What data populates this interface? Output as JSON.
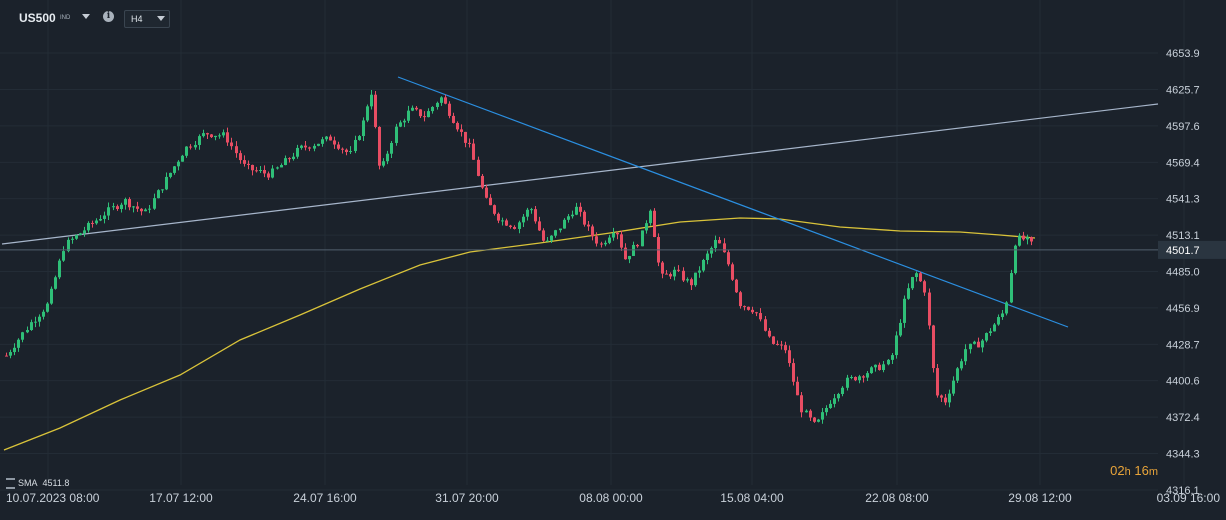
{
  "header": {
    "symbol": "US500",
    "symbol_sub": "IND",
    "info_icon": "i",
    "timeframe": "H4"
  },
  "indicator": {
    "label": "SMA",
    "value": "4511.8"
  },
  "countdown": {
    "hours": "02",
    "h_unit": "h",
    "minutes": "16",
    "m_unit": "m"
  },
  "colors": {
    "background": "#1b222b",
    "up": "#2fbf78",
    "down": "#e84d63",
    "sma": "#d9c33a",
    "trend_blue": "#2b8fe0",
    "trend_gray": "#a7b6cb",
    "price_line": "#52606e",
    "countdown": "#e8a43a"
  },
  "chart_data": {
    "type": "candlestick",
    "price_axis": {
      "ticks": [
        "4653.9",
        "4625.7",
        "4597.6",
        "4569.4",
        "4541.3",
        "4513.1",
        "4485.0",
        "4456.9",
        "4428.7",
        "4400.6",
        "4372.4",
        "4344.3",
        "4316.1"
      ],
      "current_price": "4501.7"
    },
    "time_axis": {
      "ticks": [
        "10.07.2023  08:00",
        "17.07  12:00",
        "24.07  16:00",
        "31.07  20:00",
        "08.08  00:00",
        "15.08  04:00",
        "22.08  08:00",
        "29.08  12:00",
        "03.09  16:00"
      ]
    },
    "overlays": [
      "SMA 4511.8",
      "descending trendline",
      "ascending trendline",
      "current price line"
    ]
  }
}
